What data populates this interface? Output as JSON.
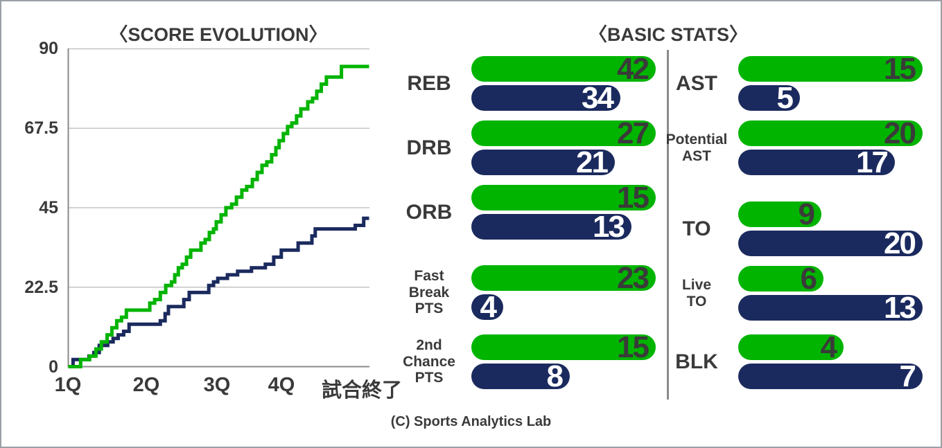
{
  "page": {
    "copyright": "(C) Sports Analytics Lab"
  },
  "chart_data": [
    {
      "type": "line",
      "title": "〈SCORE EVOLUTION〉",
      "x_labels": [
        "1Q",
        "2Q",
        "3Q",
        "4Q",
        "試合終了"
      ],
      "y_ticks": [
        90,
        67.5,
        45,
        22.5,
        0
      ],
      "ylim": [
        0,
        90
      ],
      "grid": true,
      "legend": "none",
      "line_style": "step-after",
      "series": [
        {
          "name": "green-team",
          "color": "#00b400",
          "final_score": 85,
          "steps": [
            [
              0.0,
              0
            ],
            [
              0.041,
              2
            ],
            [
              0.071,
              3
            ],
            [
              0.092,
              5
            ],
            [
              0.11,
              7
            ],
            [
              0.129,
              9
            ],
            [
              0.145,
              11
            ],
            [
              0.161,
              13
            ],
            [
              0.177,
              14
            ],
            [
              0.193,
              16
            ],
            [
              0.271,
              18
            ],
            [
              0.287,
              19
            ],
            [
              0.306,
              21
            ],
            [
              0.324,
              23
            ],
            [
              0.343,
              24
            ],
            [
              0.354,
              26
            ],
            [
              0.366,
              28
            ],
            [
              0.379,
              29
            ],
            [
              0.393,
              31
            ],
            [
              0.407,
              33
            ],
            [
              0.441,
              35
            ],
            [
              0.455,
              36
            ],
            [
              0.469,
              38
            ],
            [
              0.483,
              39
            ],
            [
              0.492,
              41
            ],
            [
              0.508,
              43
            ],
            [
              0.524,
              45
            ],
            [
              0.543,
              46
            ],
            [
              0.559,
              48
            ],
            [
              0.577,
              50
            ],
            [
              0.593,
              51
            ],
            [
              0.612,
              53
            ],
            [
              0.628,
              55
            ],
            [
              0.644,
              57
            ],
            [
              0.66,
              58
            ],
            [
              0.676,
              60
            ],
            [
              0.69,
              62
            ],
            [
              0.701,
              64
            ],
            [
              0.715,
              66
            ],
            [
              0.729,
              68
            ],
            [
              0.743,
              69
            ],
            [
              0.759,
              71
            ],
            [
              0.773,
              73
            ],
            [
              0.796,
              75
            ],
            [
              0.812,
              76
            ],
            [
              0.826,
              78
            ],
            [
              0.841,
              80
            ],
            [
              0.858,
              82
            ],
            [
              0.908,
              85
            ],
            [
              1.0,
              85
            ]
          ]
        },
        {
          "name": "navy-team",
          "color": "#1b2a5e",
          "final_score": 42,
          "steps": [
            [
              0.0,
              0
            ],
            [
              0.016,
              2
            ],
            [
              0.069,
              3
            ],
            [
              0.085,
              4
            ],
            [
              0.103,
              6
            ],
            [
              0.131,
              7
            ],
            [
              0.149,
              8
            ],
            [
              0.166,
              9
            ],
            [
              0.184,
              10
            ],
            [
              0.202,
              12
            ],
            [
              0.306,
              13
            ],
            [
              0.322,
              15
            ],
            [
              0.333,
              17
            ],
            [
              0.384,
              19
            ],
            [
              0.402,
              21
            ],
            [
              0.467,
              23
            ],
            [
              0.483,
              24
            ],
            [
              0.497,
              25
            ],
            [
              0.529,
              26
            ],
            [
              0.563,
              27
            ],
            [
              0.609,
              28
            ],
            [
              0.655,
              29
            ],
            [
              0.683,
              31
            ],
            [
              0.708,
              33
            ],
            [
              0.764,
              35
            ],
            [
              0.81,
              37
            ],
            [
              0.821,
              39
            ],
            [
              0.954,
              40
            ],
            [
              0.982,
              42
            ],
            [
              1.0,
              42
            ]
          ]
        }
      ]
    },
    {
      "type": "bar",
      "title": "〈BASIC STATS〉",
      "orientation": "horizontal",
      "normalization": "per-pair-max",
      "bar_colors": {
        "green": "#00b400",
        "navy": "#1b2a5e"
      },
      "value_colors": {
        "green": "#3a3a3a",
        "navy": "#ffffff"
      },
      "columns": [
        {
          "rows": [
            {
              "label": "REB",
              "green": 42,
              "navy": 34
            },
            {
              "label": "DRB",
              "green": 27,
              "navy": 21
            },
            {
              "label": "ORB",
              "green": 15,
              "navy": 13
            },
            {
              "label": "Fast\nBreak\nPTS",
              "green": 23,
              "navy": 4
            },
            {
              "label": "2nd\nChance\nPTS",
              "green": 15,
              "navy": 8
            }
          ]
        },
        {
          "rows": [
            {
              "label": "AST",
              "green": 15,
              "navy": 5
            },
            {
              "label": "Potential\nAST",
              "green": 20,
              "navy": 17
            },
            {
              "label": "TO",
              "green": 9,
              "navy": 20
            },
            {
              "label": "Live\nTO",
              "green": 6,
              "navy": 13
            },
            {
              "label": "BLK",
              "green": 4,
              "navy": 7
            }
          ]
        }
      ]
    }
  ]
}
